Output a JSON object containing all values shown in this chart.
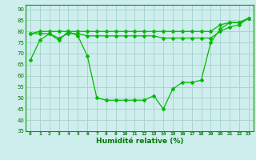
{
  "title": "",
  "xlabel": "Humidité relative (%)",
  "ylabel": "",
  "bg_color": "#ceeeed",
  "grid_color": "#aad4d0",
  "line_color": "#00bb00",
  "xlim": [
    -0.5,
    23.5
  ],
  "ylim": [
    35,
    92
  ],
  "yticks": [
    35,
    40,
    45,
    50,
    55,
    60,
    65,
    70,
    75,
    80,
    85,
    90
  ],
  "xticks": [
    0,
    1,
    2,
    3,
    4,
    5,
    6,
    7,
    8,
    9,
    10,
    11,
    12,
    13,
    14,
    15,
    16,
    17,
    18,
    19,
    20,
    21,
    22,
    23
  ],
  "series": [
    {
      "x": [
        0,
        1,
        2,
        3,
        4,
        5,
        6,
        7,
        8,
        9,
        10,
        11,
        12,
        13,
        14,
        15,
        16,
        17,
        18,
        19,
        20,
        21,
        22,
        23
      ],
      "y": [
        67,
        76,
        79,
        76,
        80,
        78,
        69,
        50,
        49,
        49,
        49,
        49,
        49,
        51,
        45,
        54,
        57,
        57,
        58,
        75,
        81,
        84,
        84,
        86
      ]
    },
    {
      "x": [
        0,
        1,
        2,
        3,
        4,
        5,
        6,
        7,
        8,
        9,
        10,
        11,
        12,
        13,
        14,
        15,
        16,
        17,
        18,
        19,
        20,
        21,
        22,
        23
      ],
      "y": [
        79,
        80,
        80,
        80,
        80,
        80,
        80,
        80,
        80,
        80,
        80,
        80,
        80,
        80,
        80,
        80,
        80,
        80,
        80,
        80,
        83,
        84,
        84,
        86
      ]
    },
    {
      "x": [
        0,
        1,
        2,
        3,
        4,
        5,
        6,
        7,
        8,
        9,
        10,
        11,
        12,
        13,
        14,
        15,
        16,
        17,
        18,
        19,
        20,
        21,
        22,
        23
      ],
      "y": [
        79,
        79,
        79,
        77,
        79,
        79,
        78,
        78,
        78,
        78,
        78,
        78,
        78,
        78,
        77,
        77,
        77,
        77,
        77,
        77,
        80,
        82,
        83,
        86
      ]
    }
  ]
}
